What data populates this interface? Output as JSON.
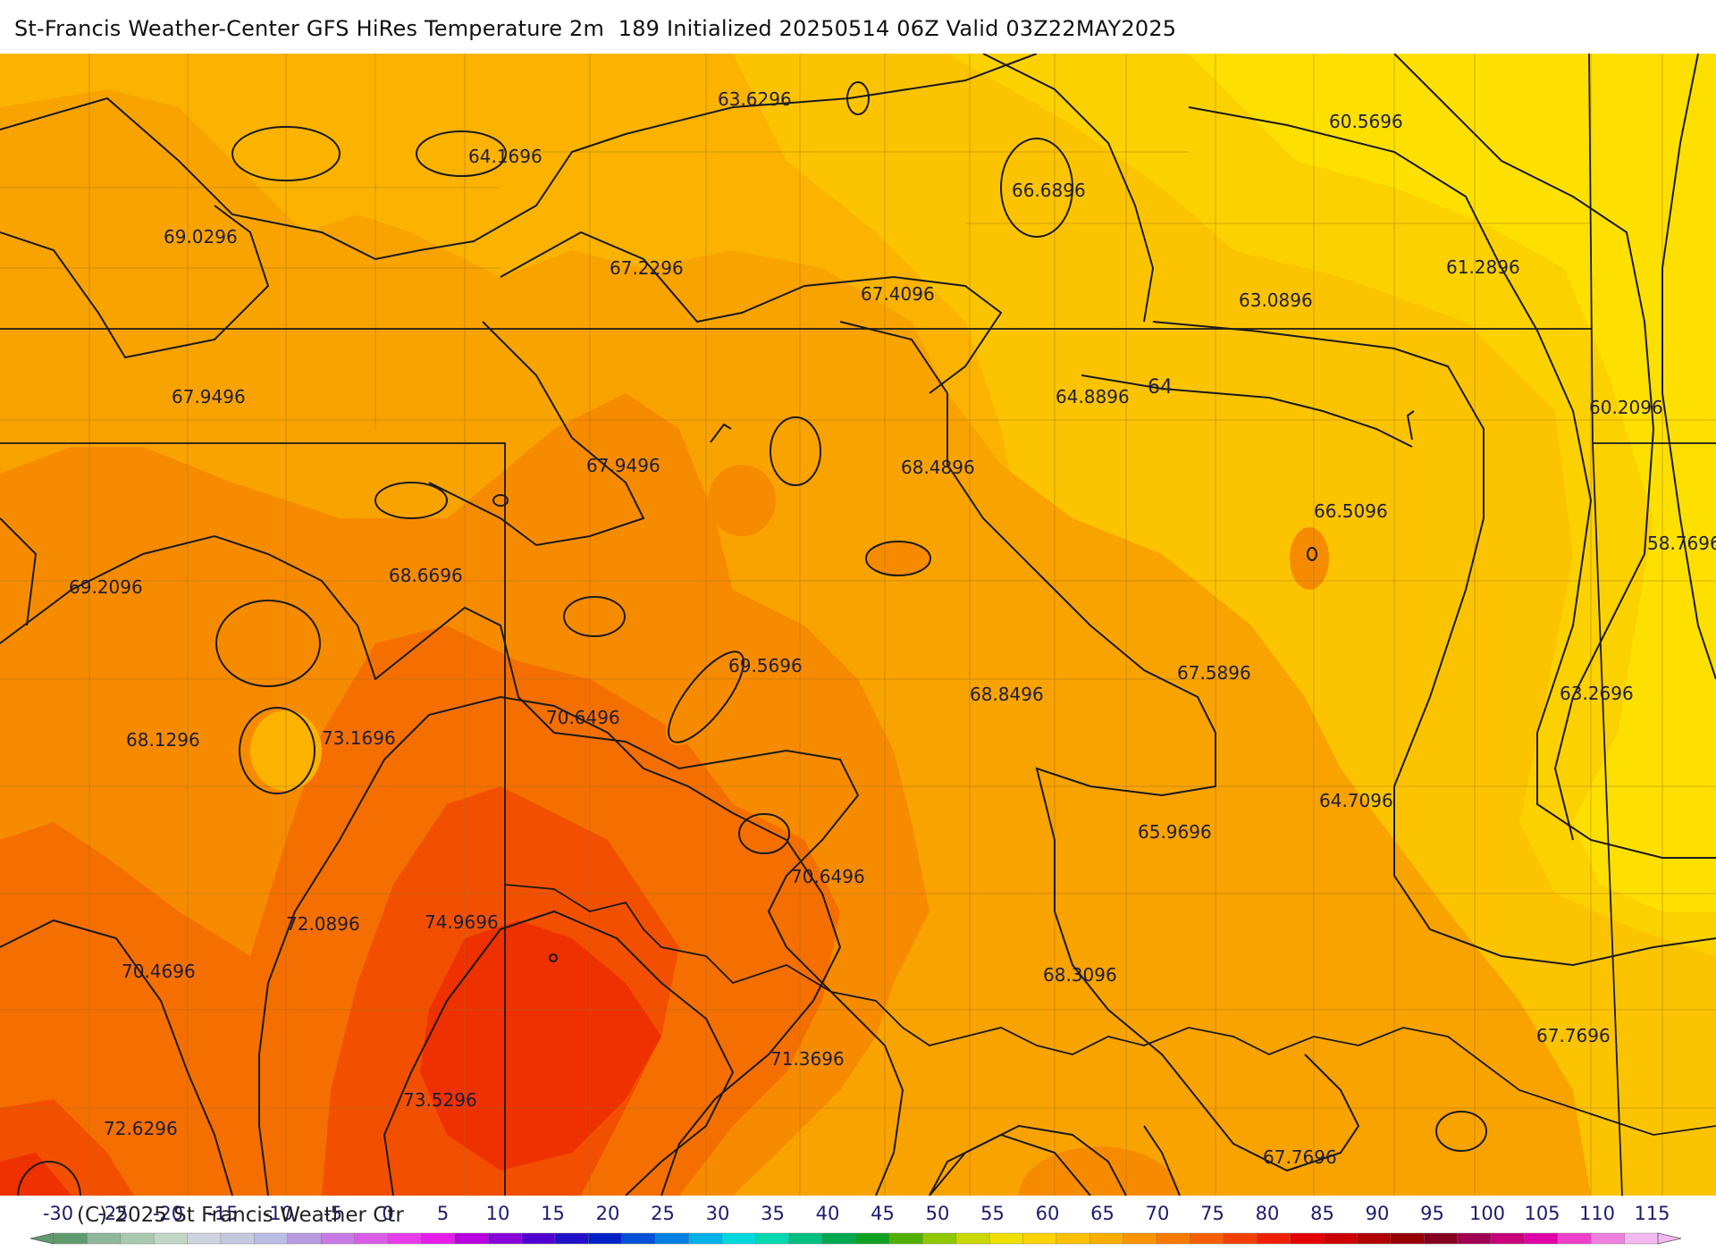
{
  "title": "St-Francis Weather-Center GFS HiRes Temperature 2m  189 Initialized 20250514 06Z Valid 03Z22MAY2025",
  "copyright": "(C)-2025 St Francis Weather Ctr",
  "colors": {
    "t60": "#fde000",
    "t62": "#fcd100",
    "t64": "#fcc400",
    "t66": "#fbb300",
    "t68": "#f9a300",
    "t70": "#f78b00",
    "t72": "#f56f00",
    "t74": "#f25000",
    "t76": "#ef3000",
    "contour": "#1a1a1a",
    "county": "#7a5a2a"
  },
  "temperature_labels": [
    {
      "text": "63.6296"
    },
    {
      "text": "64.1696"
    },
    {
      "text": "66.6896"
    },
    {
      "text": "60.5696"
    },
    {
      "text": "69.0296"
    },
    {
      "text": "67.2296"
    },
    {
      "text": "67.4096"
    },
    {
      "text": "63.0896"
    },
    {
      "text": "61.2896"
    },
    {
      "text": "67.9496"
    },
    {
      "text": "64.8896"
    },
    {
      "text": "60.2096"
    },
    {
      "text": "67.9496"
    },
    {
      "text": "68.4896"
    },
    {
      "text": "66.5096"
    },
    {
      "text": "58.7696"
    },
    {
      "text": "69.2096"
    },
    {
      "text": "68.6696"
    },
    {
      "text": "69.5696"
    },
    {
      "text": "68.8496"
    },
    {
      "text": "67.5896"
    },
    {
      "text": "63.2696"
    },
    {
      "text": "68.1296"
    },
    {
      "text": "73.1696"
    },
    {
      "text": "70.6496"
    },
    {
      "text": "64.7096"
    },
    {
      "text": "65.9696"
    },
    {
      "text": "70.6496"
    },
    {
      "text": "72.0896"
    },
    {
      "text": "74.9696"
    },
    {
      "text": "70.4696"
    },
    {
      "text": "68.3096"
    },
    {
      "text": "71.3696"
    },
    {
      "text": "67.7696"
    },
    {
      "text": "73.5296"
    },
    {
      "text": "72.6296"
    },
    {
      "text": "67.7696"
    }
  ],
  "contour_label": "64",
  "legend": {
    "ticks": [
      "-30",
      "-25",
      "-20",
      "-15",
      "-10",
      "-5",
      "0",
      "5",
      "10",
      "15",
      "20",
      "25",
      "30",
      "35",
      "40",
      "45",
      "50",
      "55",
      "60",
      "65",
      "70",
      "75",
      "80",
      "85",
      "90",
      "95",
      "100",
      "105",
      "110",
      "115"
    ],
    "colors": [
      "#5f9b6e",
      "#8fb79b",
      "#a8c8b0",
      "#c2d6c6",
      "#cdd2dc",
      "#c6c9de",
      "#b9bde4",
      "#b79ae0",
      "#c77ae3",
      "#d95ce6",
      "#e63ce9",
      "#e61ce8",
      "#b800e0",
      "#8800d8",
      "#5000d0",
      "#2010c8",
      "#0020c8",
      "#0050d8",
      "#0080e0",
      "#00b0e8",
      "#00d8e0",
      "#00d8b0",
      "#00c080",
      "#00a850",
      "#10a020",
      "#50b000",
      "#90c800",
      "#c8d800",
      "#f0e000",
      "#fcd200",
      "#fcc000",
      "#fbae00",
      "#f99400",
      "#f77a00",
      "#f55e00",
      "#f24000",
      "#ef2000",
      "#e40000",
      "#cc0000",
      "#b00000",
      "#980000",
      "#840020",
      "#a00050",
      "#c8007a",
      "#e000a8",
      "#ec40c8",
      "#f080e0",
      "#f4b8f0"
    ]
  }
}
